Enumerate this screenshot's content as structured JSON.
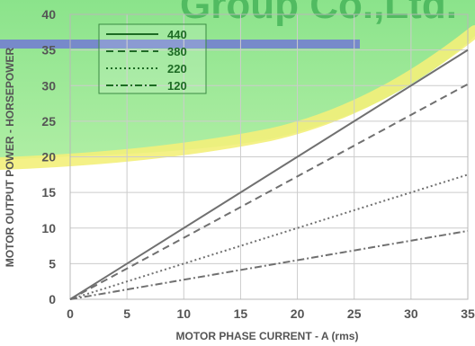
{
  "watermark_text": "Group Co.,Ltd.",
  "chart_data": {
    "type": "line",
    "xlabel": "MOTOR PHASE CURRENT - A (rms)",
    "ylabel": "MOTOR OUTPUT POWER - HORSEPOWER",
    "xlim": [
      0,
      35
    ],
    "ylim": [
      0,
      40
    ],
    "xticks": [
      0,
      5,
      10,
      15,
      20,
      25,
      30,
      35
    ],
    "yticks": [
      0,
      5,
      10,
      15,
      20,
      25,
      30,
      35,
      40
    ],
    "grid": true,
    "legend_position": "top-left",
    "series": [
      {
        "name": "440",
        "style": "solid",
        "x": [
          0,
          35
        ],
        "values": [
          0,
          35
        ]
      },
      {
        "name": "380",
        "style": "dashed",
        "x": [
          0,
          35
        ],
        "values": [
          0,
          30.2
        ]
      },
      {
        "name": "220",
        "style": "dotted",
        "x": [
          0,
          35
        ],
        "values": [
          0,
          17.5
        ]
      },
      {
        "name": "120",
        "style": "dash-dot",
        "x": [
          0,
          35
        ],
        "values": [
          0,
          9.6
        ]
      }
    ],
    "colors": {
      "grid": "#cccccc",
      "line": "#707070",
      "legend_line": "#1d6b24",
      "legend_text": "#1d6b24",
      "tick_text": "#555555"
    }
  }
}
